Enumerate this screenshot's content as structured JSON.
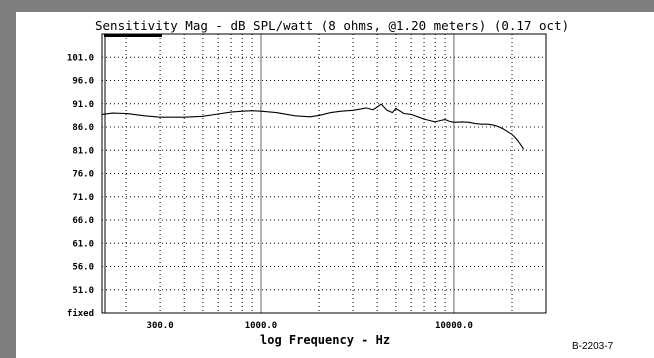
{
  "figure_id": "B-2203-7",
  "chart_data": {
    "type": "line",
    "title": "Sensitivity Mag - dB SPL/watt (8 ohms, @1.20 meters) (0.17 oct)",
    "xlabel": "log Frequency - Hz",
    "ylabel": "",
    "x_scale": "log",
    "xlim": [
      150,
      30000
    ],
    "ylim": [
      46,
      106
    ],
    "x_tick_labels": [
      {
        "value": 300,
        "label": "300.0"
      },
      {
        "value": 1000,
        "label": "1000.0"
      },
      {
        "value": 10000,
        "label": "10000.0"
      }
    ],
    "y_tick_labels": [
      {
        "value": 101,
        "label": "101.0"
      },
      {
        "value": 96,
        "label": "96.0"
      },
      {
        "value": 91,
        "label": "91.0"
      },
      {
        "value": 86,
        "label": "86.0"
      },
      {
        "value": 81,
        "label": "81.0"
      },
      {
        "value": 76,
        "label": "76.0"
      },
      {
        "value": 71,
        "label": "71.0"
      },
      {
        "value": 66,
        "label": "66.0"
      },
      {
        "value": 61,
        "label": "61.0"
      },
      {
        "value": 56,
        "label": "56.0"
      },
      {
        "value": 51,
        "label": "51.0"
      },
      {
        "value": 46,
        "label": "fixed"
      }
    ],
    "grid": true,
    "series": [
      {
        "x": [
          150,
          170,
          200,
          250,
          300,
          400,
          500,
          600,
          700,
          800,
          900,
          1000,
          1200,
          1500,
          1800,
          2000,
          2300,
          2600,
          3000,
          3300,
          3500,
          3800,
          4000,
          4200,
          4500,
          4800,
          5000,
          5500,
          6000,
          6500,
          7000,
          7500,
          8000,
          8500,
          9000,
          9500,
          10000,
          11000,
          12000,
          13000,
          14000,
          15000,
          16000,
          17000,
          18000,
          19000,
          20000,
          21000,
          22000,
          23000
        ],
        "y": [
          88.7,
          89.0,
          88.9,
          88.4,
          88.1,
          88.1,
          88.3,
          88.8,
          89.2,
          89.4,
          89.5,
          89.4,
          89.1,
          88.4,
          88.2,
          88.5,
          89.1,
          89.4,
          89.6,
          89.9,
          90.1,
          89.7,
          90.3,
          90.9,
          89.6,
          89.1,
          90.0,
          88.9,
          88.7,
          88.2,
          87.7,
          87.4,
          87.1,
          87.4,
          87.6,
          87.2,
          87.0,
          87.1,
          87.0,
          86.7,
          86.6,
          86.6,
          86.4,
          86.1,
          85.6,
          85.0,
          84.4,
          83.5,
          82.4,
          81.2
        ]
      }
    ]
  }
}
